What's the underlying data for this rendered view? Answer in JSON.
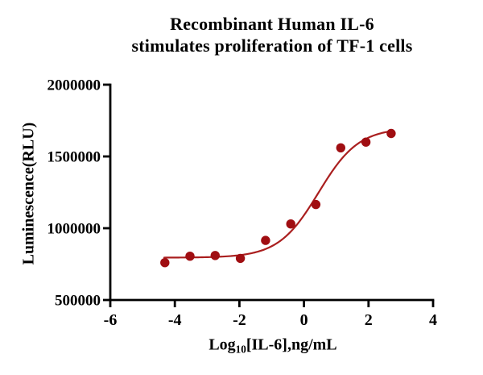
{
  "title": {
    "line1": "Recombinant Human IL-6",
    "line2": "stimulates proliferation of TF-1 cells"
  },
  "chart_data": {
    "type": "scatter",
    "title": "Recombinant Human IL-6 stimulates proliferation of TF-1 cells",
    "xlabel": "Log10[IL-6],ng/mL",
    "xlabel_prefix": "Log",
    "xlabel_sub": "10",
    "xlabel_suffix": "[IL-6],ng/mL",
    "ylabel": "Luminescence(RLU)",
    "xlim": [
      -6,
      4
    ],
    "ylim": [
      500000,
      2000000
    ],
    "x_ticks": [
      -6,
      -4,
      -2,
      0,
      2,
      4
    ],
    "x_tick_labels": [
      "-6",
      "-4",
      "-2",
      "0",
      "2",
      "4"
    ],
    "y_ticks": [
      500000,
      1000000,
      1500000,
      2000000
    ],
    "y_tick_labels": [
      "500000",
      "1000000",
      "1500000",
      "2000000"
    ],
    "grid": false,
    "legend": false,
    "points": [
      {
        "x": -4.31,
        "y": 760000
      },
      {
        "x": -3.53,
        "y": 805000
      },
      {
        "x": -2.75,
        "y": 810000
      },
      {
        "x": -1.97,
        "y": 790000
      },
      {
        "x": -1.19,
        "y": 915000
      },
      {
        "x": -0.41,
        "y": 1030000
      },
      {
        "x": 0.37,
        "y": 1165000
      },
      {
        "x": 1.14,
        "y": 1560000
      },
      {
        "x": 1.92,
        "y": 1600000
      },
      {
        "x": 2.7,
        "y": 1660000
      }
    ],
    "fit_curve": {
      "model": "four-parameter-logistic",
      "bottom": 795000,
      "top": 1700000,
      "log_ec50": 0.45,
      "hill_slope": 0.7,
      "x_start": -4.33,
      "x_end": 2.72
    },
    "colors": {
      "point": "#A00E12",
      "curve": "#AA1F1F",
      "axis": "#000000",
      "text": "#000000"
    }
  }
}
